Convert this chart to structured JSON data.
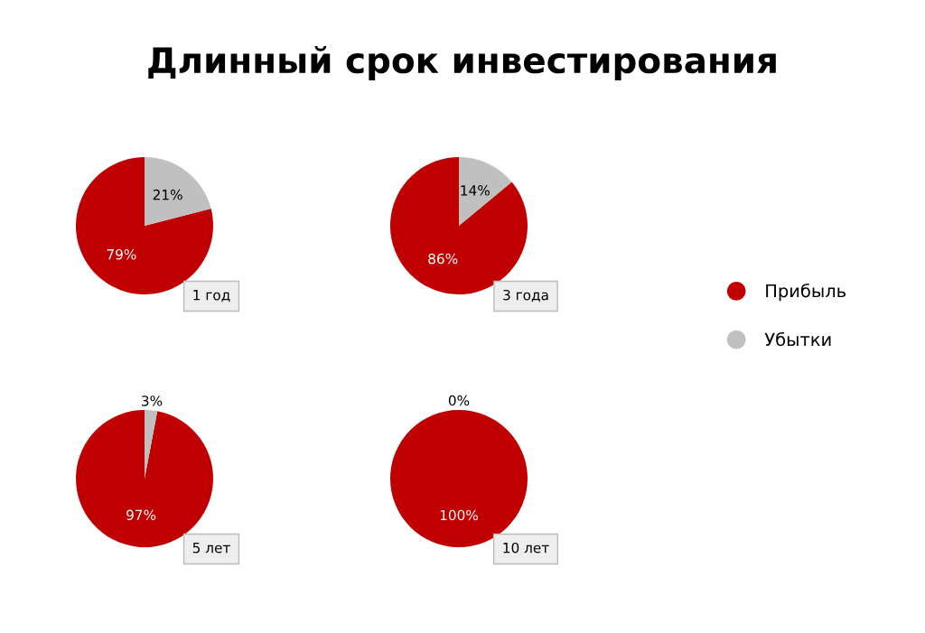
{
  "chart_data": [
    {
      "type": "pie",
      "title": "1 год",
      "annotations": [
        "Длинный срок инвестирования"
      ],
      "categories": [
        "Прибыль",
        "Убытки"
      ],
      "values": [
        79,
        21
      ],
      "value_labels": [
        "79%",
        "21%"
      ],
      "colors": [
        "#c00000",
        "#c0c0c0"
      ],
      "legend": "right"
    },
    {
      "type": "pie",
      "title": "3 года",
      "values": [
        86,
        14
      ],
      "value_labels": [
        "86%",
        "14%"
      ],
      "colors": [
        "#c00000",
        "#c0c0c0"
      ]
    },
    {
      "type": "pie",
      "title": "5 лет",
      "values": [
        97,
        3
      ],
      "value_labels": [
        "97%",
        "3%"
      ],
      "colors": [
        "#c00000",
        "#c0c0c0"
      ]
    },
    {
      "type": "pie",
      "title": "10 лет",
      "values": [
        100,
        0
      ],
      "value_labels": [
        "100%",
        "0%"
      ],
      "colors": [
        "#c00000",
        "#c0c0c0"
      ]
    }
  ]
}
